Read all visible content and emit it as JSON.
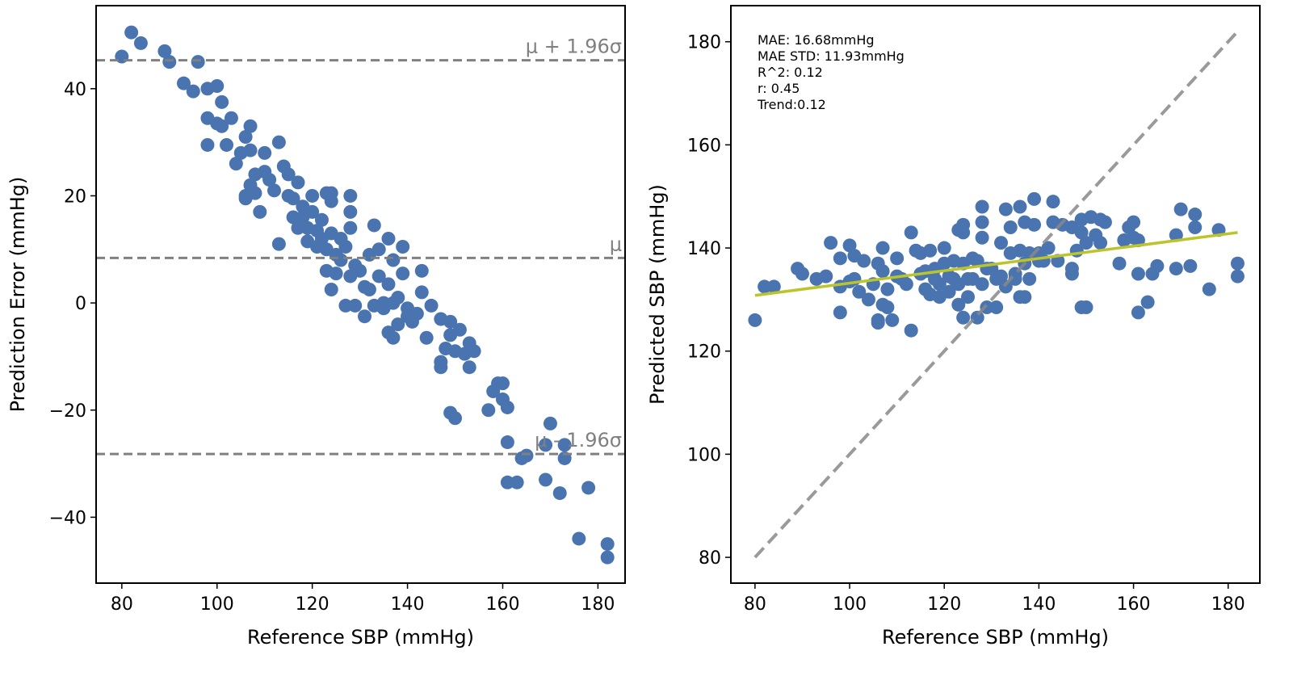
{
  "samples": {
    "reference_sbp": [
      80,
      82,
      84,
      89,
      90,
      93,
      95,
      96,
      98,
      98,
      98,
      100,
      100,
      101,
      101,
      102,
      103,
      104,
      105,
      106,
      106,
      106,
      107,
      107,
      107,
      108,
      108,
      109,
      110,
      110,
      111,
      112,
      113,
      113,
      114,
      115,
      115,
      116,
      116,
      117,
      117,
      118,
      118,
      119,
      119,
      120,
      120,
      121,
      121,
      122,
      122,
      123,
      123,
      123,
      124,
      124,
      124,
      124,
      125,
      125,
      126,
      126,
      127,
      127,
      128,
      128,
      128,
      128,
      129,
      129,
      130,
      131,
      131,
      132,
      132,
      133,
      133,
      134,
      134,
      135,
      135,
      136,
      136,
      136,
      137,
      137,
      137,
      138,
      138,
      139,
      139,
      140,
      140,
      141,
      142,
      143,
      143,
      144,
      145,
      147,
      147,
      147,
      148,
      149,
      149,
      149,
      150,
      150,
      151,
      152,
      153,
      153,
      154,
      157,
      158,
      159,
      160,
      160,
      161,
      161,
      161,
      163,
      164,
      165,
      169,
      169,
      170,
      172,
      173,
      173,
      176,
      178,
      182,
      182
    ],
    "prediction_error": [
      46,
      50.5,
      48.5,
      47,
      45,
      41,
      39.5,
      45,
      40,
      34.5,
      29.5,
      40.5,
      33.5,
      37.5,
      33,
      29.5,
      34.5,
      26,
      28,
      31,
      20,
      19.5,
      33,
      28.5,
      22,
      24,
      20.5,
      17,
      28,
      24.5,
      23,
      21,
      30,
      11,
      25.5,
      20,
      24,
      16,
      19.5,
      14,
      22.5,
      18,
      16,
      11.5,
      14,
      17,
      20,
      10.5,
      13.5,
      15.5,
      12,
      6,
      10,
      20.5,
      19,
      13,
      2.5,
      20.5,
      9,
      5.5,
      12,
      8,
      -0.5,
      10.5,
      20,
      17,
      14,
      5,
      7,
      -0.5,
      6,
      3,
      -2.5,
      9,
      2.5,
      14.5,
      -0.5,
      5,
      10,
      0,
      -1,
      12,
      -5.5,
      3.5,
      -6.5,
      0,
      8,
      -4,
      1,
      5.5,
      10.5,
      -2.5,
      -1,
      -3.5,
      -2,
      6,
      2,
      -6.5,
      -0.5,
      -3,
      -11,
      -12,
      -8.5,
      -6,
      -3.5,
      -20.5,
      -21.5,
      -9,
      -5,
      -9.5,
      -7.5,
      -12,
      -9,
      -20,
      -16.5,
      -15,
      -15,
      -18,
      -19.5,
      -26,
      -33.5,
      -33.5,
      -29,
      -28.5,
      -33,
      -26.5,
      -22.5,
      -35.5,
      -29,
      -26.5,
      -44,
      -34.5,
      -45,
      -47.5
    ]
  },
  "colors": {
    "points": "#4a74b0",
    "reference_lines": "#808080",
    "trend": "#bcc42c",
    "frame": "#000000"
  },
  "chart_data": [
    {
      "type": "scatter",
      "title": "",
      "xlabel": "Reference SBP (mmHg)",
      "ylabel": "Prediction Error (mmHg)",
      "xlim": [
        74.6,
        185.7
      ],
      "ylim": [
        -52.3,
        55.5
      ],
      "xticks": [
        80,
        100,
        120,
        140,
        160,
        180
      ],
      "xtick_labels": [
        "80",
        "100",
        "120",
        "140",
        "160",
        "180"
      ],
      "yticks": [
        -40,
        -20,
        0,
        20,
        40
      ],
      "ytick_labels": [
        "−40",
        "−20",
        "0",
        "20",
        "40"
      ],
      "series": [
        {
          "name": "samples",
          "x": "samples.reference_sbp",
          "y": "samples.prediction_error"
        }
      ],
      "hlines": [
        {
          "value": 45.3,
          "label": "μ + 1.96σ"
        },
        {
          "value": 8.4,
          "label": "μ"
        },
        {
          "value": -28.2,
          "label": "μ - 1.96σ"
        }
      ],
      "grid": false
    },
    {
      "type": "scatter",
      "title": "",
      "xlabel": "Reference SBP (mmHg)",
      "ylabel": "Predicted SBP (mmHg)",
      "xlim": [
        74.9,
        186.7
      ],
      "ylim": [
        75,
        187
      ],
      "xticks": [
        80,
        100,
        120,
        140,
        160,
        180
      ],
      "xtick_labels": [
        "80",
        "100",
        "120",
        "140",
        "160",
        "180"
      ],
      "yticks": [
        80,
        100,
        120,
        140,
        160,
        180
      ],
      "ytick_labels": [
        "80",
        "100",
        "120",
        "140",
        "160",
        "180"
      ],
      "series": [
        {
          "name": "samples",
          "x": "samples.reference_sbp",
          "y": "reference_sbp + prediction_error"
        }
      ],
      "identity_line": {
        "from": [
          80,
          80
        ],
        "to": [
          182,
          182
        ]
      },
      "trend_line": {
        "from": [
          80,
          130.8
        ],
        "to": [
          182,
          143
        ]
      },
      "annotation": [
        "MAE: 16.68mmHg",
        "MAE STD: 11.93mmHg",
        "R^2: 0.12",
        "r: 0.45",
        "Trend:0.12"
      ],
      "grid": false
    }
  ]
}
